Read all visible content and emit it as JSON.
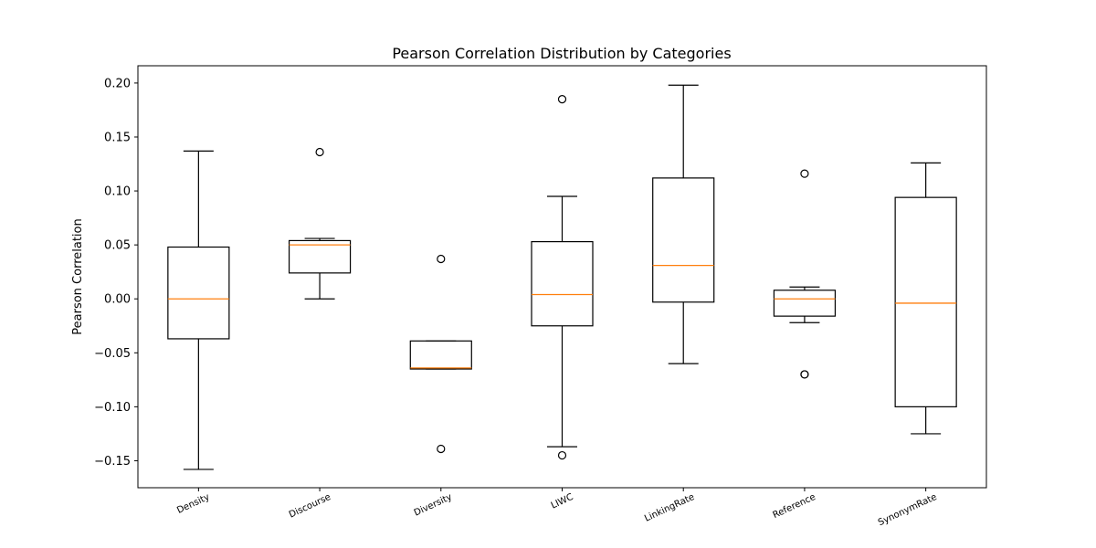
{
  "chart_data": {
    "type": "box",
    "title": "Pearson Correlation Distribution by Categories",
    "xlabel": "",
    "ylabel": "Pearson Correlation",
    "ylim": [
      -0.175,
      0.216
    ],
    "yticks": [
      -0.15,
      -0.1,
      -0.05,
      0.0,
      0.05,
      0.1,
      0.15,
      0.2
    ],
    "ytick_labels": [
      "−0.15",
      "−0.10",
      "−0.05",
      "0.00",
      "0.05",
      "0.10",
      "0.15",
      "0.20"
    ],
    "grid": false,
    "categories": [
      "Density",
      "Discourse",
      "Diversity",
      "LIWC",
      "LinkingRate",
      "Reference",
      "SynonymRate"
    ],
    "boxes": [
      {
        "category": "Density",
        "whisker_low": -0.158,
        "q1": -0.037,
        "median": 0.0,
        "q3": 0.048,
        "whisker_high": 0.137,
        "outliers": []
      },
      {
        "category": "Discourse",
        "whisker_low": 0.0,
        "q1": 0.024,
        "median": 0.05,
        "q3": 0.054,
        "whisker_high": 0.056,
        "outliers": [
          0.136
        ]
      },
      {
        "category": "Diversity",
        "whisker_low": -0.065,
        "q1": -0.065,
        "median": -0.064,
        "q3": -0.039,
        "whisker_high": -0.039,
        "outliers": [
          0.037,
          -0.139
        ]
      },
      {
        "category": "LIWC",
        "whisker_low": -0.137,
        "q1": -0.025,
        "median": 0.004,
        "q3": 0.053,
        "whisker_high": 0.095,
        "outliers": [
          0.185,
          -0.145
        ]
      },
      {
        "category": "LinkingRate",
        "whisker_low": -0.06,
        "q1": -0.003,
        "median": 0.031,
        "q3": 0.112,
        "whisker_high": 0.198,
        "outliers": []
      },
      {
        "category": "Reference",
        "whisker_low": -0.022,
        "q1": -0.016,
        "median": 0.0,
        "q3": 0.008,
        "whisker_high": 0.011,
        "outliers": [
          0.116,
          -0.07,
          -0.07
        ]
      },
      {
        "category": "SynonymRate",
        "whisker_low": -0.125,
        "q1": -0.1,
        "median": -0.004,
        "q3": 0.094,
        "whisker_high": 0.126,
        "outliers": []
      }
    ],
    "colors": {
      "box": "#000000",
      "median": "#ff7f0e",
      "outlier": "#000000",
      "axes": "#000000"
    }
  }
}
